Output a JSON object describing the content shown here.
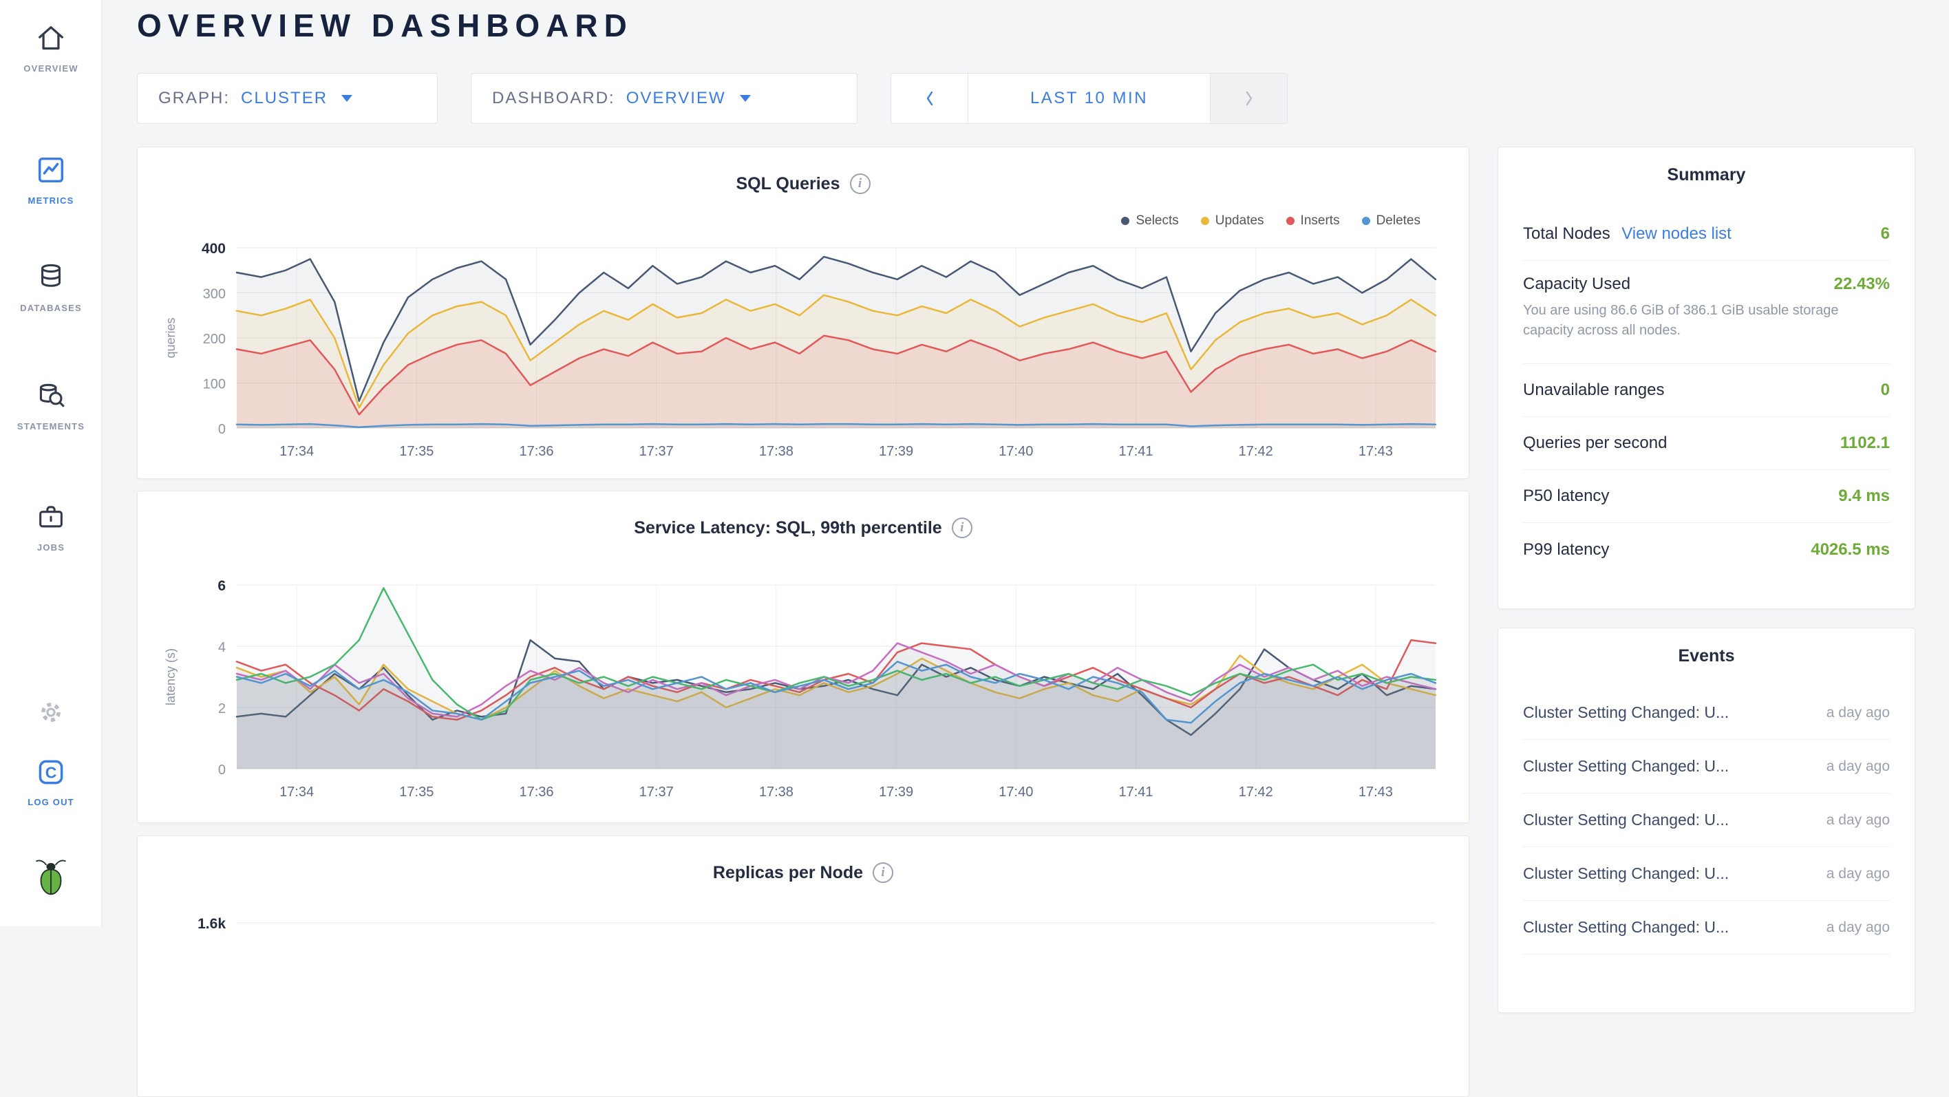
{
  "colors": {
    "accent_blue": "#3a7de2",
    "positive_green": "#6cab35",
    "title_navy": "#17233e"
  },
  "sidebar": {
    "items": [
      {
        "label": "OVERVIEW"
      },
      {
        "label": "METRICS"
      },
      {
        "label": "DATABASES"
      },
      {
        "label": "STATEMENTS"
      },
      {
        "label": "JOBS"
      }
    ],
    "logout_label": "LOG OUT"
  },
  "header": {
    "title": "OVERVIEW DASHBOARD"
  },
  "controls": {
    "graph": {
      "label": "GRAPH:",
      "value": "CLUSTER"
    },
    "dashboard": {
      "label": "DASHBOARD:",
      "value": "OVERVIEW"
    },
    "time_range": {
      "value": "LAST 10 MIN"
    }
  },
  "summary": {
    "title": "Summary",
    "rows": [
      {
        "label": "Total Nodes",
        "link": "View nodes list",
        "value": "6"
      },
      {
        "label": "Capacity Used",
        "value": "22.43%",
        "subtext": "You are using 86.6 GiB of 386.1 GiB usable storage capacity across all nodes."
      },
      {
        "label": "Unavailable ranges",
        "value": "0"
      },
      {
        "label": "Queries per second",
        "value": "1102.1"
      },
      {
        "label": "P50 latency",
        "value": "9.4 ms"
      },
      {
        "label": "P99 latency",
        "value": "4026.5 ms"
      }
    ]
  },
  "events": {
    "title": "Events",
    "items": [
      {
        "title": "Cluster Setting Changed: U...",
        "time": "a day ago"
      },
      {
        "title": "Cluster Setting Changed: U...",
        "time": "a day ago"
      },
      {
        "title": "Cluster Setting Changed: U...",
        "time": "a day ago"
      },
      {
        "title": "Cluster Setting Changed: U...",
        "time": "a day ago"
      },
      {
        "title": "Cluster Setting Changed: U...",
        "time": "a day ago"
      }
    ]
  },
  "chart_data": [
    {
      "type": "area",
      "title": "SQL Queries",
      "ylabel": "queries",
      "ylim": [
        0,
        400
      ],
      "y_ticks": [
        0,
        100,
        200,
        300,
        400
      ],
      "y_tick_labels": [
        "0",
        "100",
        "200",
        "300",
        "400"
      ],
      "x_ticks": [
        "17:34",
        "17:35",
        "17:36",
        "17:37",
        "17:38",
        "17:39",
        "17:40",
        "17:41",
        "17:42",
        "17:43"
      ],
      "legend_position": "top-right",
      "grid": true,
      "series": [
        {
          "name": "Selects",
          "color": "#475872",
          "fill": "rgba(71,88,114,0.08)",
          "values": [
            345,
            335,
            350,
            375,
            280,
            60,
            190,
            290,
            330,
            355,
            370,
            330,
            185,
            240,
            300,
            345,
            310,
            360,
            320,
            335,
            370,
            345,
            360,
            330,
            380,
            365,
            345,
            330,
            360,
            335,
            370,
            345,
            295,
            320,
            345,
            360,
            330,
            310,
            335,
            170,
            255,
            305,
            330,
            345,
            320,
            335,
            300,
            330,
            375,
            330
          ]
        },
        {
          "name": "Updates",
          "color": "#eab839",
          "fill": "rgba(234,184,57,0.10)",
          "values": [
            260,
            250,
            265,
            285,
            200,
            45,
            140,
            210,
            250,
            270,
            280,
            250,
            150,
            190,
            230,
            260,
            240,
            275,
            245,
            255,
            285,
            260,
            275,
            250,
            295,
            280,
            260,
            250,
            270,
            255,
            285,
            260,
            225,
            245,
            260,
            275,
            250,
            235,
            255,
            130,
            195,
            235,
            255,
            265,
            245,
            255,
            230,
            250,
            285,
            250
          ]
        },
        {
          "name": "Inserts",
          "color": "#e1585a",
          "fill": "rgba(225,88,90,0.13)",
          "values": [
            175,
            165,
            180,
            195,
            130,
            30,
            90,
            140,
            165,
            185,
            195,
            165,
            95,
            125,
            155,
            175,
            160,
            190,
            165,
            170,
            200,
            175,
            190,
            165,
            205,
            195,
            175,
            165,
            185,
            170,
            195,
            175,
            150,
            165,
            175,
            190,
            170,
            155,
            170,
            80,
            130,
            160,
            175,
            185,
            165,
            175,
            155,
            170,
            195,
            170
          ]
        },
        {
          "name": "Deletes",
          "color": "#5395cf",
          "fill": "rgba(83,149,207,0.10)",
          "values": [
            8,
            7,
            8,
            9,
            6,
            2,
            5,
            7,
            8,
            8,
            9,
            8,
            5,
            6,
            7,
            8,
            8,
            9,
            8,
            8,
            9,
            8,
            9,
            8,
            9,
            9,
            8,
            8,
            9,
            8,
            9,
            8,
            7,
            8,
            8,
            9,
            8,
            8,
            8,
            4,
            6,
            7,
            8,
            8,
            8,
            8,
            7,
            8,
            9,
            8
          ]
        }
      ]
    },
    {
      "type": "line",
      "title": "Service Latency: SQL, 99th percentile",
      "ylabel": "latency (s)",
      "ylim": [
        0,
        6
      ],
      "y_ticks": [
        0,
        2,
        4,
        6
      ],
      "y_tick_labels": [
        "0",
        "2",
        "4",
        "6"
      ],
      "x_ticks": [
        "17:34",
        "17:35",
        "17:36",
        "17:37",
        "17:38",
        "17:39",
        "17:40",
        "17:41",
        "17:42",
        "17:43"
      ],
      "legend_position": "none",
      "grid": true,
      "series": [
        {
          "name": "",
          "color": "#475872",
          "fill": "rgba(120,125,135,0.07)",
          "values": [
            1.7,
            1.8,
            1.7,
            2.4,
            3.1,
            2.6,
            3.3,
            2.4,
            1.6,
            1.9,
            1.7,
            1.8,
            4.2,
            3.6,
            3.5,
            2.6,
            3.0,
            2.8,
            2.9,
            2.7,
            2.5,
            2.6,
            2.8,
            2.6,
            2.7,
            2.9,
            2.6,
            2.4,
            3.4,
            3.0,
            3.3,
            2.9,
            2.7,
            3.0,
            2.8,
            2.6,
            3.1,
            2.4,
            1.6,
            1.1,
            1.8,
            2.6,
            3.9,
            3.3,
            2.9,
            2.6,
            3.1,
            2.4,
            2.7,
            2.6
          ]
        },
        {
          "name": "",
          "color": "#eab839",
          "fill": "rgba(120,125,135,0.07)",
          "values": [
            3.3,
            3.0,
            3.2,
            2.5,
            3.0,
            2.1,
            3.4,
            2.6,
            2.2,
            1.8,
            1.6,
            2.0,
            2.6,
            3.2,
            2.7,
            2.3,
            2.6,
            2.4,
            2.2,
            2.5,
            2.0,
            2.3,
            2.6,
            2.4,
            2.8,
            2.5,
            2.7,
            3.1,
            3.6,
            3.2,
            2.8,
            2.5,
            2.3,
            2.6,
            2.8,
            2.4,
            2.2,
            2.6,
            2.3,
            2.1,
            2.6,
            3.7,
            3.1,
            2.8,
            2.6,
            3.0,
            3.4,
            2.8,
            2.6,
            2.4
          ]
        },
        {
          "name": "",
          "color": "#e1585a",
          "fill": "rgba(120,125,135,0.07)",
          "values": [
            3.5,
            3.2,
            3.4,
            2.8,
            2.4,
            1.9,
            2.6,
            2.2,
            1.7,
            1.6,
            1.9,
            2.4,
            3.0,
            3.3,
            2.9,
            2.6,
            3.0,
            2.7,
            2.5,
            2.8,
            2.6,
            2.9,
            2.7,
            2.5,
            2.9,
            3.1,
            2.8,
            3.8,
            4.1,
            4.0,
            3.9,
            3.4,
            3.0,
            2.7,
            3.0,
            3.3,
            2.9,
            2.6,
            2.3,
            2.0,
            2.6,
            3.1,
            2.8,
            3.0,
            2.7,
            2.4,
            2.9,
            2.6,
            4.2,
            4.1
          ]
        },
        {
          "name": "",
          "color": "#c76ec2",
          "fill": "rgba(120,125,135,0.07)",
          "values": [
            3.1,
            2.9,
            3.2,
            2.6,
            3.4,
            2.8,
            3.1,
            2.3,
            1.8,
            1.7,
            2.1,
            2.7,
            3.2,
            2.9,
            3.3,
            2.8,
            2.5,
            2.9,
            2.6,
            2.8,
            2.4,
            2.7,
            2.9,
            2.6,
            3.0,
            2.8,
            3.2,
            4.1,
            3.8,
            3.5,
            3.1,
            3.4,
            3.0,
            2.7,
            3.1,
            2.8,
            3.3,
            2.9,
            2.5,
            2.2,
            2.9,
            3.4,
            3.0,
            3.3,
            2.9,
            3.2,
            2.7,
            3.0,
            2.8,
            2.6
          ]
        },
        {
          "name": "",
          "color": "#47b96d",
          "fill": "rgba(120,125,135,0.07)",
          "values": [
            2.9,
            3.1,
            2.8,
            3.0,
            3.4,
            4.2,
            5.9,
            4.4,
            2.9,
            2.1,
            1.6,
            1.9,
            2.9,
            3.1,
            2.8,
            3.0,
            2.7,
            3.0,
            2.8,
            2.6,
            2.9,
            2.7,
            2.5,
            2.8,
            3.0,
            2.7,
            2.9,
            3.2,
            2.9,
            3.1,
            2.8,
            3.0,
            2.7,
            2.9,
            3.1,
            2.8,
            2.6,
            2.9,
            2.7,
            2.4,
            2.8,
            3.1,
            2.9,
            3.2,
            3.4,
            2.9,
            3.1,
            2.8,
            3.0,
            2.9
          ]
        },
        {
          "name": "",
          "color": "#5395cf",
          "fill": "rgba(120,125,135,0.07)",
          "values": [
            3.0,
            2.8,
            3.1,
            2.7,
            3.2,
            2.6,
            2.9,
            2.5,
            1.9,
            1.8,
            1.6,
            2.2,
            2.8,
            3.0,
            3.2,
            2.7,
            2.9,
            2.6,
            2.8,
            3.0,
            2.6,
            2.8,
            2.5,
            2.7,
            2.9,
            2.6,
            2.8,
            3.5,
            3.2,
            3.4,
            3.0,
            2.8,
            3.1,
            2.9,
            2.6,
            3.0,
            2.8,
            2.5,
            1.6,
            1.5,
            2.2,
            2.8,
            3.1,
            2.9,
            2.7,
            3.0,
            2.6,
            2.9,
            3.1,
            2.8
          ]
        }
      ]
    },
    {
      "type": "area",
      "title": "Replicas per Node",
      "ylim": [
        0,
        1600
      ],
      "y_ticks": [
        1600
      ],
      "y_tick_labels": [
        "1.6k"
      ],
      "grid": true,
      "series": []
    }
  ]
}
